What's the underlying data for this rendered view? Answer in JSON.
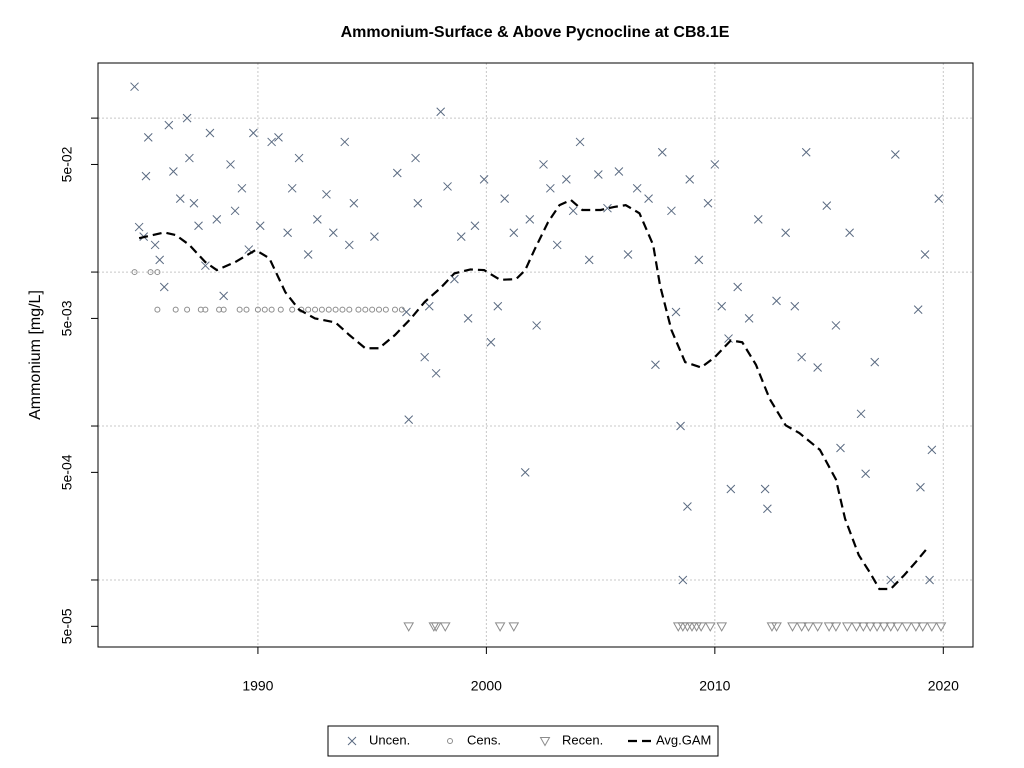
{
  "chart_data": {
    "type": "scatter",
    "title": "Ammonium-Surface & Above Pycnocline at CB8.1E",
    "y_label": "Ammonium [mg/L]",
    "ylog": true,
    "grid": true,
    "legend": "bottom",
    "xlim": [
      1983.0,
      2021.3
    ],
    "ylim": [
      3.67e-05,
      0.228
    ],
    "xticks": [
      1990,
      2000,
      2010,
      2020
    ],
    "yticks": [
      {
        "value": 5e-05,
        "label": "5e-05"
      },
      {
        "value": 0.0005,
        "label": "5e-04"
      },
      {
        "value": 0.005,
        "label": "5e-03"
      },
      {
        "value": 0.05,
        "label": "5e-02"
      }
    ],
    "ygrid": [
      0.0001,
      0.001,
      0.01,
      0.1
    ],
    "series": [
      {
        "name": "Uncen.",
        "marker": "cross",
        "color": "#5b6b82",
        "x": [
          1984.6,
          1984.8,
          1985.1,
          1985.0,
          1985.2,
          1985.5,
          1985.7,
          1985.9,
          1986.1,
          1986.3,
          1986.6,
          1986.9,
          1987.0,
          1987.2,
          1987.4,
          1987.7,
          1987.9,
          1988.2,
          1988.5,
          1988.8,
          1989.0,
          1989.3,
          1989.6,
          1989.8,
          1990.1,
          1990.6,
          1990.9,
          1991.3,
          1991.5,
          1991.8,
          1992.2,
          1992.6,
          1993.0,
          1993.3,
          1993.8,
          1994.0,
          1994.2,
          1995.1,
          1996.1,
          1996.5,
          1996.6,
          1996.9,
          1997.0,
          1997.3,
          1997.5,
          1997.8,
          1998.0,
          1998.3,
          1998.6,
          1998.9,
          1999.2,
          1999.5,
          1999.9,
          2000.2,
          2000.5,
          2000.8,
          2001.2,
          2001.7,
          2001.9,
          2002.2,
          2002.5,
          2002.8,
          2003.1,
          2003.5,
          2003.8,
          2004.1,
          2004.5,
          2004.9,
          2005.3,
          2005.8,
          2006.2,
          2006.6,
          2007.1,
          2007.4,
          2007.7,
          2008.1,
          2008.3,
          2008.5,
          2008.8,
          2008.6,
          2008.9,
          2009.3,
          2009.7,
          2010.0,
          2010.3,
          2010.6,
          2010.7,
          2011.0,
          2011.5,
          2011.9,
          2012.2,
          2012.3,
          2012.7,
          2013.1,
          2013.5,
          2013.8,
          2014.0,
          2014.5,
          2014.9,
          2015.3,
          2015.5,
          2015.9,
          2016.4,
          2016.6,
          2017.0,
          2017.7,
          2017.9,
          2018.9,
          2019.0,
          2019.2,
          2019.4,
          2019.5,
          2019.8
        ],
        "values": [
          0.16,
          0.0196,
          0.042,
          0.017,
          0.075,
          0.015,
          0.012,
          0.008,
          0.09,
          0.045,
          0.03,
          0.1,
          0.055,
          0.028,
          0.02,
          0.011,
          0.08,
          0.022,
          0.007,
          0.05,
          0.025,
          0.035,
          0.014,
          0.08,
          0.02,
          0.07,
          0.075,
          0.018,
          0.035,
          0.055,
          0.013,
          0.022,
          0.032,
          0.018,
          0.07,
          0.015,
          0.028,
          0.017,
          0.044,
          0.0055,
          0.0011,
          0.055,
          0.028,
          0.0028,
          0.006,
          0.0022,
          0.11,
          0.036,
          0.009,
          0.017,
          0.005,
          0.02,
          0.04,
          0.0035,
          0.006,
          0.03,
          0.018,
          0.0005,
          0.022,
          0.0045,
          0.05,
          0.035,
          0.015,
          0.04,
          0.025,
          0.07,
          0.012,
          0.043,
          0.026,
          0.045,
          0.013,
          0.035,
          0.03,
          0.0025,
          0.06,
          0.025,
          0.0055,
          0.001,
          0.0003,
          0.0001,
          0.04,
          0.012,
          0.028,
          0.05,
          0.006,
          0.0037,
          0.00039,
          0.008,
          0.005,
          0.022,
          0.00039,
          0.00029,
          0.0065,
          0.018,
          0.006,
          0.0028,
          0.06,
          0.0024,
          0.027,
          0.0045,
          0.00072,
          0.018,
          0.0012,
          0.00049,
          0.0026,
          0.0001,
          0.058,
          0.0057,
          0.0004,
          0.013,
          0.0001,
          0.0007,
          0.03
        ]
      },
      {
        "name": "Cens.",
        "marker": "circle",
        "color": "#8c8c8c",
        "x": [
          1984.6,
          1985.3,
          1985.6,
          1985.6,
          1986.4,
          1986.9,
          1987.5,
          1987.7,
          1988.3,
          1988.5,
          1989.2,
          1989.5,
          1990.0,
          1990.3,
          1990.6,
          1991.0,
          1991.5,
          1991.9,
          1992.2,
          1992.5,
          1992.8,
          1993.1,
          1993.4,
          1993.7,
          1994.0,
          1994.4,
          1994.7,
          1995.0,
          1995.3,
          1995.6,
          1996.0,
          1996.3
        ],
        "values": [
          0.01,
          0.01,
          0.01,
          0.0057,
          0.0057,
          0.0057,
          0.0057,
          0.0057,
          0.0057,
          0.0057,
          0.0057,
          0.0057,
          0.0057,
          0.0057,
          0.0057,
          0.0057,
          0.0057,
          0.0057,
          0.0057,
          0.0057,
          0.0057,
          0.0057,
          0.0057,
          0.0057,
          0.0057,
          0.0057,
          0.0057,
          0.0057,
          0.0057,
          0.0057,
          0.0057,
          0.0057
        ]
      },
      {
        "name": "Recen.",
        "marker": "triangle",
        "color": "#8c8c8c",
        "x": [
          1996.6,
          1997.7,
          1997.8,
          1998.2,
          2000.6,
          2001.2,
          2008.4,
          2008.6,
          2008.8,
          2009.0,
          2009.2,
          2009.4,
          2009.8,
          2010.3,
          2012.5,
          2012.7,
          2013.4,
          2013.8,
          2014.1,
          2014.5,
          2015.0,
          2015.3,
          2015.8,
          2016.2,
          2016.5,
          2016.8,
          2017.1,
          2017.4,
          2017.7,
          2018.0,
          2018.4,
          2018.8,
          2019.1,
          2019.5,
          2019.9
        ],
        "values": [
          5e-05,
          5e-05,
          5e-05,
          5e-05,
          5e-05,
          5e-05,
          5e-05,
          5e-05,
          5e-05,
          5e-05,
          5e-05,
          5e-05,
          5e-05,
          5e-05,
          5e-05,
          5e-05,
          5e-05,
          5e-05,
          5e-05,
          5e-05,
          5e-05,
          5e-05,
          5e-05,
          5e-05,
          5e-05,
          5e-05,
          5e-05,
          5e-05,
          5e-05,
          5e-05,
          5e-05,
          5e-05,
          5e-05,
          5e-05,
          5e-05
        ]
      },
      {
        "name": "Avg.GAM",
        "marker": "line",
        "line_style": "dashed",
        "color": "#000000",
        "x": [
          1984.8,
          1985.9,
          1986.4,
          1987.0,
          1987.7,
          1988.2,
          1989.0,
          1989.9,
          1990.5,
          1991.2,
          1991.8,
          1992.5,
          1993.4,
          1994.0,
          1994.7,
          1995.3,
          1996.0,
          1996.7,
          1997.3,
          1998.0,
          1998.6,
          1999.3,
          1999.9,
          2000.6,
          2001.3,
          2001.7,
          2002.1,
          2002.7,
          2003.2,
          2003.7,
          2004.2,
          2005.0,
          2005.6,
          2006.1,
          2006.7,
          2007.3,
          2007.6,
          2008.1,
          2008.7,
          2009.4,
          2010.0,
          2010.7,
          2011.2,
          2011.8,
          2012.4,
          2013.1,
          2013.7,
          2014.6,
          2015.3,
          2015.7,
          2016.3,
          2016.8,
          2017.2,
          2017.7,
          2018.3,
          2018.8,
          2019.3
        ],
        "values": [
          0.0166,
          0.0181,
          0.0174,
          0.015,
          0.0116,
          0.0103,
          0.0116,
          0.0139,
          0.0123,
          0.0074,
          0.0057,
          0.005,
          0.0047,
          0.0039,
          0.0032,
          0.0032,
          0.0039,
          0.005,
          0.0064,
          0.0079,
          0.0098,
          0.0104,
          0.0103,
          0.0089,
          0.009,
          0.0103,
          0.0139,
          0.0211,
          0.0272,
          0.0294,
          0.0253,
          0.0253,
          0.0265,
          0.0272,
          0.0241,
          0.015,
          0.0082,
          0.0042,
          0.0026,
          0.0024,
          0.0028,
          0.0036,
          0.0035,
          0.0025,
          0.0015,
          0.00101,
          0.0009,
          0.0007,
          0.00045,
          0.00025,
          0.000145,
          0.000111,
          8.74e-05,
          8.74e-05,
          0.000108,
          0.000131,
          0.000161
        ]
      }
    ]
  }
}
